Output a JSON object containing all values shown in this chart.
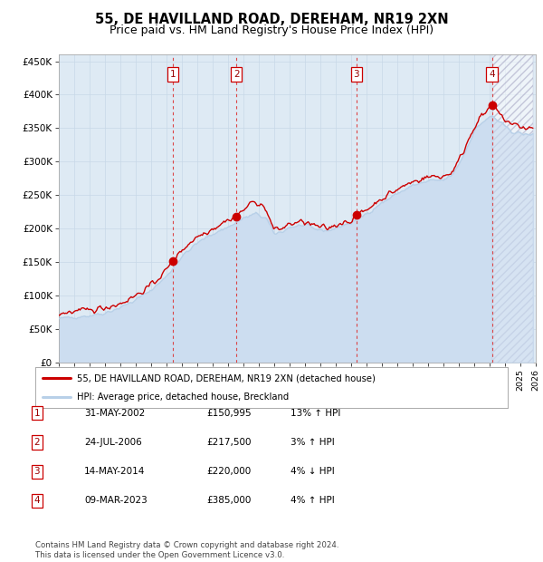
{
  "title": "55, DE HAVILLAND ROAD, DEREHAM, NR19 2XN",
  "subtitle": "Price paid vs. HM Land Registry's House Price Index (HPI)",
  "ylim": [
    0,
    460000
  ],
  "yticks": [
    0,
    50000,
    100000,
    150000,
    200000,
    250000,
    300000,
    350000,
    400000,
    450000
  ],
  "ytick_labels": [
    "£0",
    "£50K",
    "£100K",
    "£150K",
    "£200K",
    "£250K",
    "£300K",
    "£350K",
    "£400K",
    "£450K"
  ],
  "x_start_year": 1995,
  "x_end_year": 2026,
  "sale_dates": [
    2002.42,
    2006.56,
    2014.37,
    2023.18
  ],
  "sale_prices": [
    150995,
    217500,
    220000,
    385000
  ],
  "sale_labels": [
    "1",
    "2",
    "3",
    "4"
  ],
  "hpi_color": "#b8d0e8",
  "hpi_fill_color": "#ccddf0",
  "price_color": "#cc0000",
  "sale_dot_color": "#cc0000",
  "bg_color": "#deeaf4",
  "grid_color": "#b0c8d8",
  "vline_color": "#dd3333",
  "legend_price_label": "55, DE HAVILLAND ROAD, DEREHAM, NR19 2XN (detached house)",
  "legend_hpi_label": "HPI: Average price, detached house, Breckland",
  "table_rows": [
    [
      "1",
      "31-MAY-2002",
      "£150,995",
      "13% ↑ HPI"
    ],
    [
      "2",
      "24-JUL-2006",
      "£217,500",
      "3% ↑ HPI"
    ],
    [
      "3",
      "14-MAY-2014",
      "£220,000",
      "4% ↓ HPI"
    ],
    [
      "4",
      "09-MAR-2023",
      "£385,000",
      "4% ↑ HPI"
    ]
  ],
  "footnote": "Contains HM Land Registry data © Crown copyright and database right 2024.\nThis data is licensed under the Open Government Licence v3.0."
}
